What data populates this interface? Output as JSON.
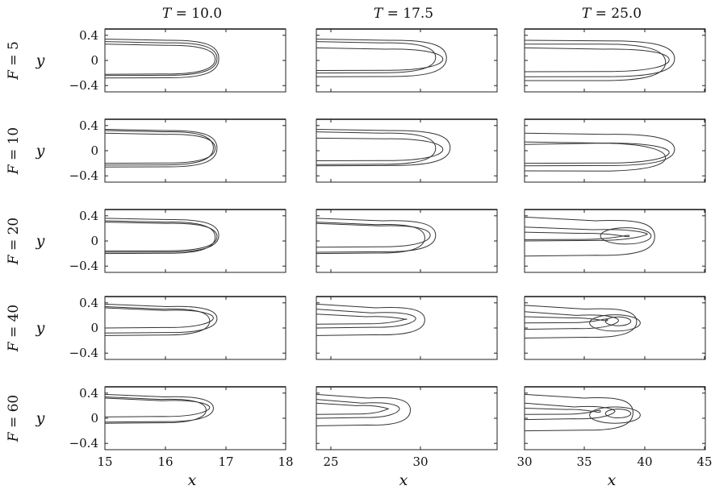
{
  "figure": {
    "x_label": "x",
    "y_label": "y",
    "columns": [
      {
        "prefix": "T = ",
        "value": "10.0",
        "xticks": [
          "15",
          "16",
          "17",
          "18"
        ],
        "xlim": [
          15,
          18
        ]
      },
      {
        "prefix": "T = ",
        "value": "17.5",
        "xticks": [
          "25",
          "30"
        ],
        "xlim": [
          24,
          33
        ]
      },
      {
        "prefix": "T = ",
        "value": "25.0",
        "xticks": [
          "30",
          "35",
          "40",
          "45"
        ],
        "xlim": [
          30,
          45
        ]
      }
    ],
    "rows": [
      {
        "label": "F = 5"
      },
      {
        "label": "F = 10"
      },
      {
        "label": "F = 20"
      },
      {
        "label": "F = 40"
      },
      {
        "label": "F = 60"
      }
    ],
    "yticks": [
      "0.4",
      "0",
      "−0.4"
    ],
    "ylim": [
      -0.5,
      0.5
    ]
  }
}
